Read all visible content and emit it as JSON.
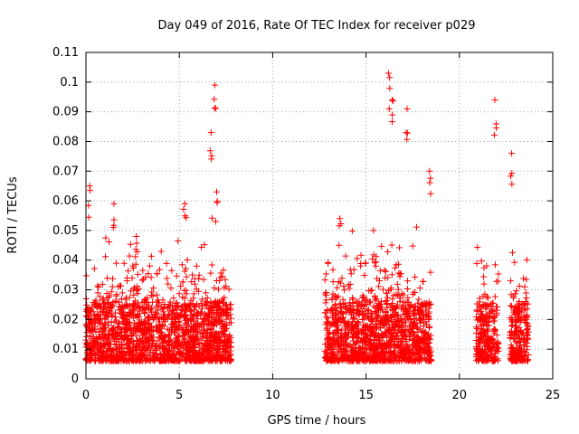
{
  "chart_data": {
    "type": "scatter",
    "title": "Day 049 of 2016, Rate Of TEC Index for receiver p029",
    "xlabel": "GPS time / hours",
    "ylabel": "ROTI / TECUs",
    "xlim": [
      0,
      25
    ],
    "ylim": [
      0,
      0.11
    ],
    "xticks": [
      0,
      5,
      10,
      15,
      20,
      25
    ],
    "xtick_labels": [
      "0",
      "5",
      "10",
      "15",
      "20",
      "25"
    ],
    "yticks": [
      0,
      0.01,
      0.02,
      0.03,
      0.04,
      0.05,
      0.06,
      0.07,
      0.08,
      0.09,
      0.1,
      0.11
    ],
    "ytick_labels": [
      "0",
      "0.01",
      "0.02",
      "0.03",
      "0.04",
      "0.05",
      "0.06",
      "0.07",
      "0.08",
      "0.09",
      "0.1",
      "0.11"
    ],
    "grid": true,
    "marker": "+",
    "color": "#ff0000",
    "segments": [
      {
        "x_start": 0.0,
        "x_end": 7.8
      },
      {
        "x_start": 12.8,
        "x_end": 18.5
      },
      {
        "x_start": 20.9,
        "x_end": 22.1
      },
      {
        "x_start": 22.7,
        "x_end": 23.7
      }
    ],
    "notable_points": [
      {
        "x": 0.2,
        "y": 0.065
      },
      {
        "x": 1.5,
        "y": 0.059
      },
      {
        "x": 2.7,
        "y": 0.048
      },
      {
        "x": 5.3,
        "y": 0.059
      },
      {
        "x": 6.7,
        "y": 0.083
      },
      {
        "x": 6.9,
        "y": 0.099
      },
      {
        "x": 7.0,
        "y": 0.063
      },
      {
        "x": 13.6,
        "y": 0.054
      },
      {
        "x": 15.4,
        "y": 0.05
      },
      {
        "x": 16.2,
        "y": 0.103
      },
      {
        "x": 16.4,
        "y": 0.094
      },
      {
        "x": 17.2,
        "y": 0.091
      },
      {
        "x": 18.4,
        "y": 0.07
      },
      {
        "x": 21.9,
        "y": 0.094
      },
      {
        "x": 22.8,
        "y": 0.076
      },
      {
        "x": 23.5,
        "y": 0.031
      }
    ]
  }
}
